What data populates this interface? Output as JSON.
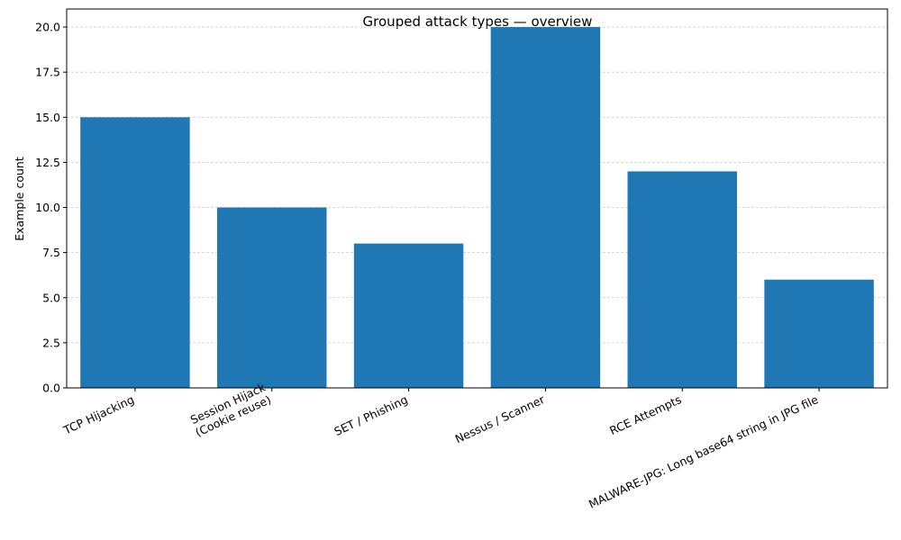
{
  "chart_data": {
    "type": "bar",
    "title": "Grouped attack types — overview",
    "xlabel": "",
    "ylabel": "Example count",
    "categories": [
      [
        "TCP Hijacking"
      ],
      [
        "Session Hijack",
        "(Cookie reuse)"
      ],
      [
        "SET / Phishing"
      ],
      [
        "Nessus / Scanner"
      ],
      [
        "RCE Attempts"
      ],
      [
        "MALWARE-JPG: Long base64 string in JPG file"
      ]
    ],
    "values": [
      15,
      10,
      8,
      20,
      12,
      6
    ],
    "yticks": [
      "0.0",
      "2.5",
      "5.0",
      "7.5",
      "10.0",
      "12.5",
      "15.0",
      "17.5",
      "20.0"
    ],
    "ylim": [
      0,
      21
    ],
    "grid": "y",
    "bar_color": "#1f77b4"
  }
}
